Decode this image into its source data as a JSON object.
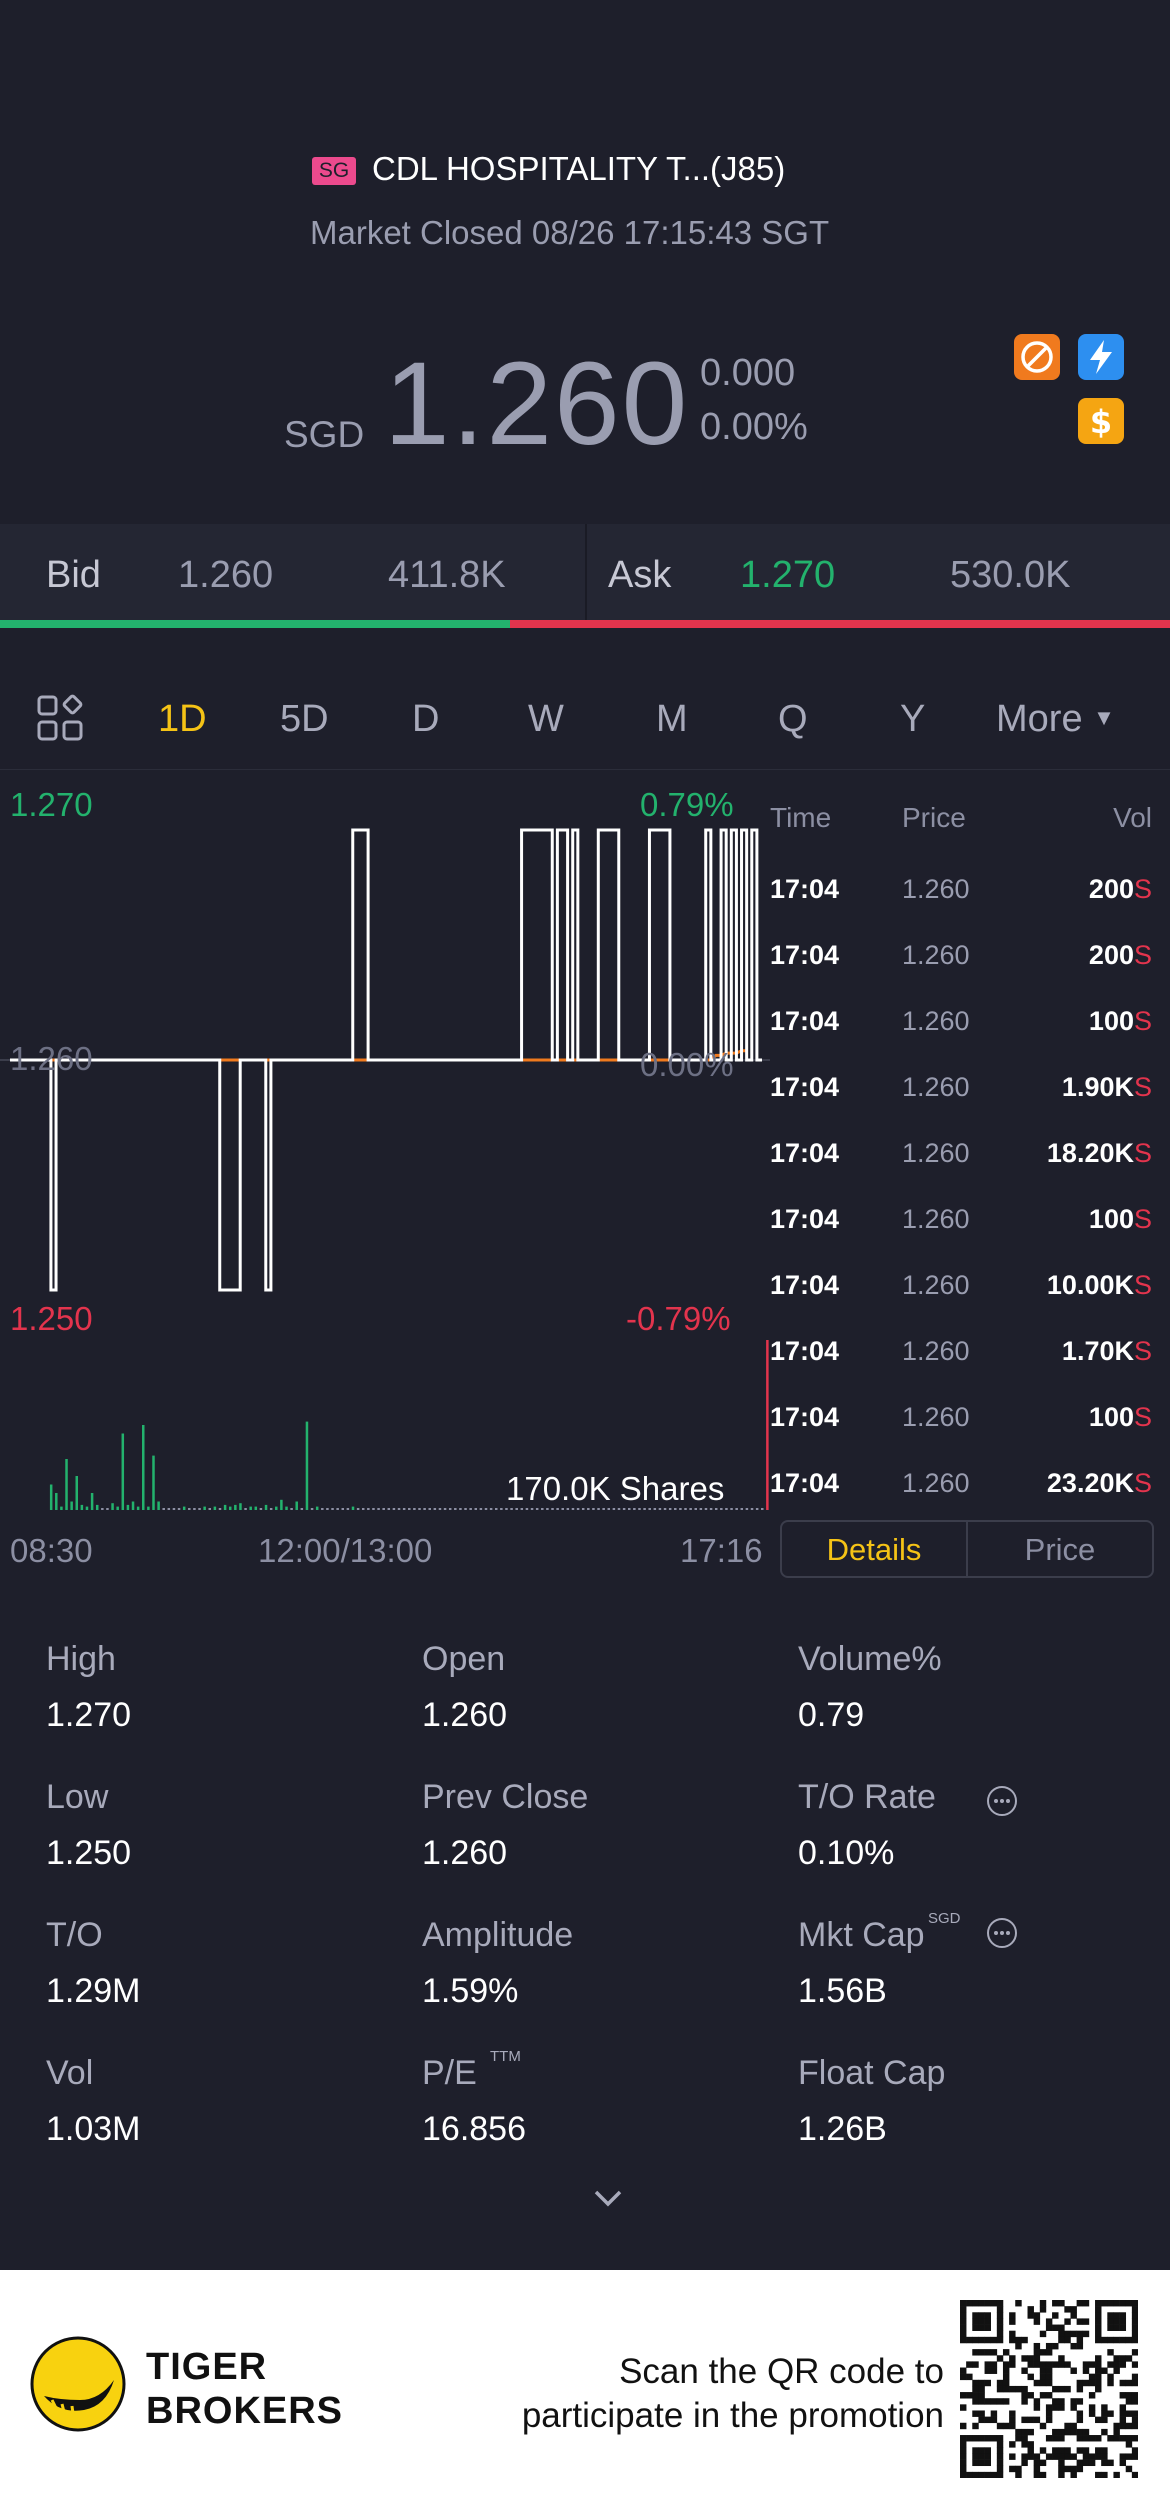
{
  "header": {
    "exchange_badge": "SG",
    "name": "CDL HOSPITALITY T...(J85)",
    "status": "Market Closed 08/26 17:15:43 SGT",
    "currency": "SGD",
    "price": "1.260",
    "change": "0.000",
    "change_pct": "0.00%"
  },
  "bid_ask": {
    "bid_label": "Bid",
    "bid_price": "1.260",
    "bid_size": "411.8K",
    "ask_label": "Ask",
    "ask_price": "1.270",
    "ask_size": "530.0K"
  },
  "tabs": [
    "1D",
    "5D",
    "D",
    "W",
    "M",
    "Q",
    "Y",
    "More"
  ],
  "chart": {
    "y_high": "1.270",
    "y_high_pct": "0.79%",
    "y_mid": "1.260",
    "y_mid_pct": "0.00%",
    "y_low": "1.250",
    "y_low_pct": "-0.79%",
    "volume_label": "170.0K Shares",
    "x_start": "08:30",
    "x_mid": "12:00/13:00",
    "x_end": "17:16"
  },
  "chart_data": {
    "type": "line",
    "ylim": [
      1.25,
      1.27
    ],
    "series": [
      {
        "values": [
          1.26,
          1.26,
          1.26,
          1.26,
          1.26,
          1.26,
          1.26,
          1.26,
          1.25,
          1.26,
          1.26,
          1.26,
          1.26,
          1.26,
          1.26,
          1.26,
          1.26,
          1.26,
          1.26,
          1.26,
          1.26,
          1.26,
          1.26,
          1.26,
          1.26,
          1.26,
          1.26,
          1.26,
          1.26,
          1.26,
          1.26,
          1.26,
          1.26,
          1.26,
          1.26,
          1.26,
          1.26,
          1.26,
          1.26,
          1.26,
          1.26,
          1.25,
          1.25,
          1.25,
          1.25,
          1.26,
          1.26,
          1.26,
          1.26,
          1.26,
          1.25,
          1.26,
          1.26,
          1.26,
          1.26,
          1.26,
          1.26,
          1.26,
          1.26,
          1.26,
          1.26,
          1.26,
          1.26,
          1.26,
          1.26,
          1.26,
          1.26,
          1.27,
          1.27,
          1.27,
          1.26,
          1.26,
          1.26,
          1.26,
          1.26,
          1.26,
          1.26,
          1.26,
          1.26,
          1.26,
          1.26,
          1.26,
          1.26,
          1.26,
          1.26,
          1.26,
          1.26,
          1.26,
          1.26,
          1.26,
          1.26,
          1.26,
          1.26,
          1.26,
          1.26,
          1.26,
          1.26,
          1.26,
          1.26,
          1.26,
          1.27,
          1.27,
          1.27,
          1.27,
          1.27,
          1.27,
          1.26,
          1.27,
          1.27,
          1.26,
          1.27,
          1.26,
          1.26,
          1.26,
          1.26,
          1.27,
          1.27,
          1.27,
          1.27,
          1.26,
          1.26,
          1.26,
          1.26,
          1.26,
          1.26,
          1.27,
          1.27,
          1.27,
          1.27,
          1.26,
          1.26,
          1.26,
          1.26,
          1.26,
          1.26,
          1.26,
          1.27,
          1.26,
          1.26,
          1.27,
          1.26,
          1.27,
          1.26,
          1.27,
          1.26,
          1.27,
          1.26,
          1.26
        ]
      },
      {
        "values": [
          1.26,
          1.26,
          1.26,
          1.26,
          1.26,
          1.26,
          1.26,
          1.26,
          1.26,
          1.26,
          1.26,
          1.26,
          1.26,
          1.26,
          1.26,
          1.26,
          1.26,
          1.26,
          1.26,
          1.26,
          1.26,
          1.26,
          1.26,
          1.26,
          1.26,
          1.26,
          1.26,
          1.26,
          1.26,
          1.26,
          1.26,
          1.26,
          1.26,
          1.26,
          1.26,
          1.26,
          1.26,
          1.26,
          1.26,
          1.26,
          1.26,
          1.26,
          1.26,
          1.26,
          1.26,
          1.26,
          1.26,
          1.26,
          1.26,
          1.26,
          1.26,
          1.26,
          1.26,
          1.26,
          1.26,
          1.26,
          1.26,
          1.26,
          1.26,
          1.26,
          1.26,
          1.26,
          1.26,
          1.26,
          1.26,
          1.26,
          1.26,
          1.26,
          1.26,
          1.26,
          1.26,
          1.26,
          1.26,
          1.26,
          1.26,
          1.26,
          1.26,
          1.26,
          1.26,
          1.26,
          1.26,
          1.26,
          1.26,
          1.26,
          1.26,
          1.26,
          1.26,
          1.26,
          1.26,
          1.26,
          1.26,
          1.26,
          1.26,
          1.26,
          1.26,
          1.26,
          1.26,
          1.26,
          1.26,
          1.26,
          1.26,
          1.26,
          1.26,
          1.26,
          1.26,
          1.26,
          1.26,
          1.26,
          1.26,
          1.26,
          1.26,
          1.26,
          1.26,
          1.26,
          1.26,
          1.26,
          1.26,
          1.26,
          1.26,
          1.26,
          1.26,
          1.26,
          1.26,
          1.26,
          1.26,
          1.26,
          1.26,
          1.26,
          1.26,
          1.26,
          1.26,
          1.26,
          1.26,
          1.26,
          1.26,
          1.26,
          1.26,
          1.26,
          1.2602,
          1.2602,
          1.2603,
          1.2603,
          1.2603,
          1.2604,
          1.2604
        ]
      }
    ],
    "volumes": [
      0,
      0,
      0,
      0,
      0,
      0,
      0,
      0,
      0.15,
      0.1,
      0.02,
      0.3,
      0.05,
      0.2,
      0.03,
      0.02,
      0.1,
      0.03,
      0.01,
      0.01,
      0.04,
      0.02,
      0.45,
      0.03,
      0.05,
      0.02,
      0.5,
      0.02,
      0.32,
      0.05,
      0.01,
      0.01,
      0.01,
      0.01,
      0.02,
      0.01,
      0.01,
      0.01,
      0.02,
      0.01,
      0.02,
      0.01,
      0.03,
      0.02,
      0.03,
      0.04,
      0.01,
      0.02,
      0.02,
      0.01,
      0.03,
      0.01,
      0.02,
      0.06,
      0.02,
      0.01,
      0.05,
      0.01,
      0.52,
      0.01,
      0.02,
      0.01,
      0.01,
      0.01,
      0.01,
      0.01,
      0.01,
      0.02,
      0.01,
      0.01,
      0.01,
      0.01,
      0.01,
      0.01,
      0.01,
      0.01,
      0.01,
      0.01,
      0.01,
      0.01,
      0.01,
      0.01,
      0.01,
      0.01,
      0.01,
      0.01,
      0.01,
      0.01,
      0.01,
      0.01,
      0.01,
      0.01,
      0.01,
      0.01,
      0.01,
      0.01,
      0.01,
      0.01,
      0.01,
      0.01,
      0.01,
      0.01,
      0.01,
      0.01,
      0.01,
      0.01,
      0.01,
      0.01,
      0.01,
      0.01,
      0.01,
      0.01,
      0.01,
      0.01,
      0.01,
      0.01,
      0.01,
      0.01,
      0.01,
      0.01,
      0.01,
      0.01,
      0.01,
      0.01,
      0.01,
      0.01,
      0.01,
      0.01,
      0.01,
      0.01,
      0.01,
      0.01,
      0.01,
      0.01,
      0.01,
      0.01,
      0.01,
      0.01,
      0.01,
      0.01,
      0.01,
      0.01,
      0.01,
      0.01,
      0.01,
      0.01,
      0.01,
      0.01,
      1.0
    ]
  },
  "ticker": {
    "headers": {
      "time": "Time",
      "price": "Price",
      "vol": "Vol"
    },
    "rows": [
      {
        "time": "17:04",
        "price": "1.260",
        "vol": "200",
        "side": "S"
      },
      {
        "time": "17:04",
        "price": "1.260",
        "vol": "200",
        "side": "S"
      },
      {
        "time": "17:04",
        "price": "1.260",
        "vol": "100",
        "side": "S"
      },
      {
        "time": "17:04",
        "price": "1.260",
        "vol": "1.90K",
        "side": "S"
      },
      {
        "time": "17:04",
        "price": "1.260",
        "vol": "18.20K",
        "side": "S"
      },
      {
        "time": "17:04",
        "price": "1.260",
        "vol": "100",
        "side": "S"
      },
      {
        "time": "17:04",
        "price": "1.260",
        "vol": "10.00K",
        "side": "S"
      },
      {
        "time": "17:04",
        "price": "1.260",
        "vol": "1.70K",
        "side": "S"
      },
      {
        "time": "17:04",
        "price": "1.260",
        "vol": "100",
        "side": "S"
      },
      {
        "time": "17:04",
        "price": "1.260",
        "vol": "23.20K",
        "side": "S"
      }
    ]
  },
  "toggle": {
    "details": "Details",
    "price": "Price"
  },
  "stats": [
    {
      "label": "High",
      "value": "1.270"
    },
    {
      "label": "Open",
      "value": "1.260"
    },
    {
      "label": "Volume%",
      "value": "0.79"
    },
    {
      "label": "Low",
      "value": "1.250"
    },
    {
      "label": "Prev Close",
      "value": "1.260"
    },
    {
      "label": "T/O Rate",
      "value": "0.10%"
    },
    {
      "label": "T/O",
      "value": "1.29M"
    },
    {
      "label": "Amplitude",
      "value": "1.59%"
    },
    {
      "label": "Mkt Cap",
      "value": "1.56B",
      "sup": "SGD"
    },
    {
      "label": "Vol",
      "value": "1.03M"
    },
    {
      "label": "P/E",
      "value": "16.856",
      "sup": "TTM"
    },
    {
      "label": "Float Cap",
      "value": "1.26B"
    }
  ],
  "footer": {
    "brand_line1": "TIGER",
    "brand_line2": "BROKERS",
    "promo_line1": "Scan the QR code to",
    "promo_line2": "participate in the promotion"
  },
  "colors": {
    "up": "#23b26d",
    "down": "#e3344d",
    "accent": "#f5c316",
    "bg": "#1e1f2b"
  }
}
